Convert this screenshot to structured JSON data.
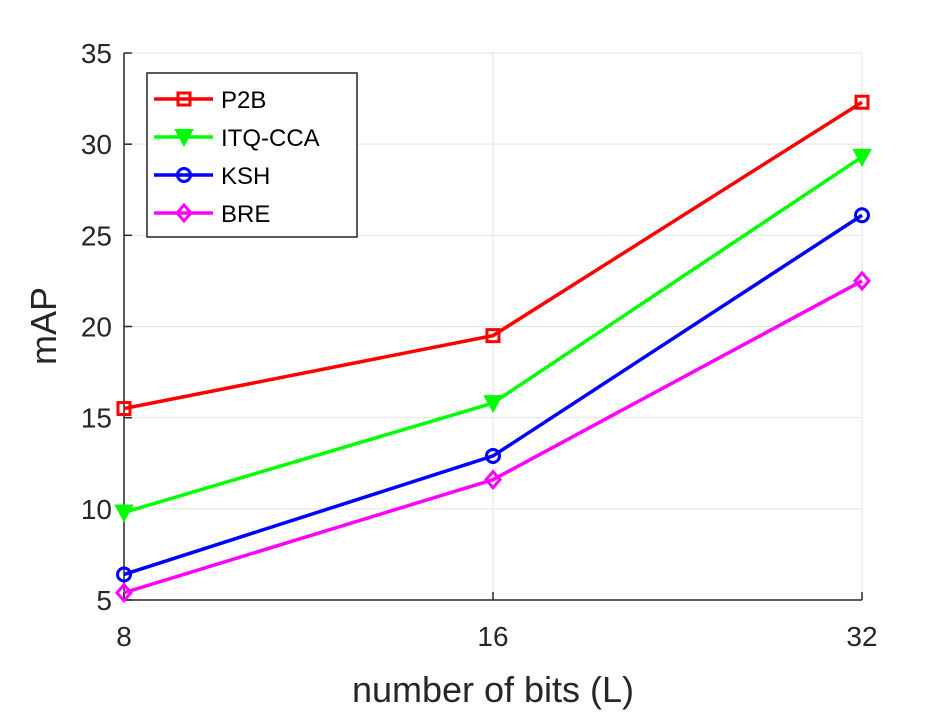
{
  "chart_data": {
    "type": "line",
    "title": "",
    "xlabel": "number of bits (L)",
    "ylabel": "mAP",
    "x": [
      8,
      16,
      32
    ],
    "x_tick_labels": [
      "8",
      "16",
      "32"
    ],
    "y_ticks": [
      5,
      10,
      15,
      20,
      25,
      30,
      35
    ],
    "y_tick_labels": [
      "5",
      "10",
      "15",
      "20",
      "25",
      "30",
      "35"
    ],
    "ylim": [
      5,
      35
    ],
    "grid": true,
    "legend_position": "top-left",
    "series": [
      {
        "name": "P2B",
        "color": "#ff0000",
        "marker": "square",
        "values": [
          15.5,
          19.5,
          32.3
        ]
      },
      {
        "name": "ITQ-CCA",
        "color": "#00ff00",
        "marker": "triangle-down",
        "values": [
          9.8,
          15.8,
          29.3
        ]
      },
      {
        "name": "KSH",
        "color": "#0000ff",
        "marker": "circle",
        "values": [
          6.4,
          12.9,
          26.1
        ]
      },
      {
        "name": "BRE",
        "color": "#ff00ff",
        "marker": "diamond",
        "values": [
          5.4,
          11.6,
          22.5
        ]
      }
    ]
  }
}
